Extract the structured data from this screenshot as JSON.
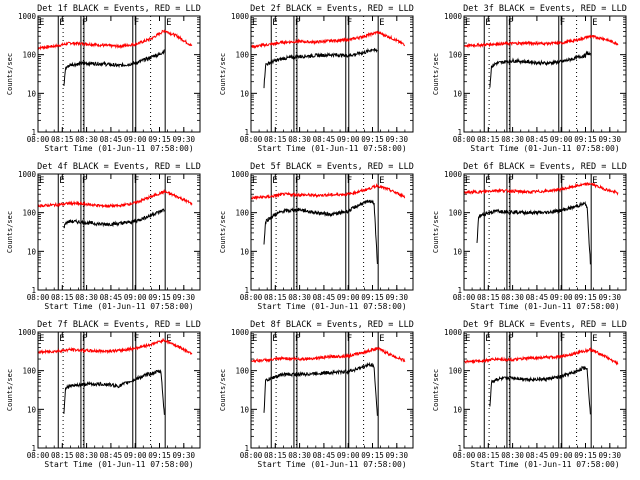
{
  "figure": {
    "common": {
      "ylabel": "Counts/sec",
      "xlabel": "Start Time (01-Jun-11 07:58:00)",
      "yticks": [
        {
          "value": 1,
          "label": "1"
        },
        {
          "value": 10,
          "label": "10"
        },
        {
          "value": 100,
          "label": "100"
        },
        {
          "value": 1000,
          "label": "1000"
        }
      ],
      "xticks": [
        {
          "value": 480,
          "label": "08:00"
        },
        {
          "value": 495,
          "label": "08:15"
        },
        {
          "value": 510,
          "label": "08:30"
        },
        {
          "value": 525,
          "label": "08:45"
        },
        {
          "value": 540,
          "label": "09:00"
        },
        {
          "value": 555,
          "label": "09:15"
        },
        {
          "value": 570,
          "label": "09:30"
        }
      ],
      "markers": [
        {
          "value": 492.5,
          "label": "E"
        },
        {
          "value": 506.5,
          "label": "F"
        },
        {
          "value": 538.5,
          "label": "F"
        },
        {
          "value": 558.5,
          "label": "E"
        }
      ],
      "dotted_lines": [
        495.5,
        508,
        549.5
      ],
      "colors": {
        "events": "#000000",
        "lld": "#ff0000",
        "axis": "#000000"
      }
    },
    "panels": [
      {
        "title": "Det 1f BLACK = Events, RED = LLD"
      },
      {
        "title": "Det 2f BLACK = Events, RED = LLD"
      },
      {
        "title": "Det 3f BLACK = Events, RED = LLD"
      },
      {
        "title": "Det 4f BLACK = Events, RED = LLD"
      },
      {
        "title": "Det 5f BLACK = Events, RED = LLD"
      },
      {
        "title": "Det 6f BLACK = Events, RED = LLD"
      },
      {
        "title": "Det 7f BLACK = Events, RED = LLD"
      },
      {
        "title": "Det 8f BLACK = Events, RED = LLD"
      },
      {
        "title": "Det 9f BLACK = Events, RED = LLD"
      }
    ]
  },
  "chart_data": [
    {
      "type": "line",
      "title": "Det 1f BLACK = Events, RED = LLD",
      "xlabel": "Start Time (01-Jun-11 07:58:00)",
      "ylabel": "Counts/sec",
      "yscale": "log",
      "ylim": [
        1,
        1000
      ],
      "xlim": [
        480,
        580
      ],
      "series": [
        {
          "name": "LLD",
          "color": "#ff0000",
          "x": [
            480,
            492,
            500,
            510,
            520,
            530,
            540,
            550,
            558,
            566,
            575
          ],
          "y": [
            150,
            170,
            200,
            190,
            175,
            165,
            185,
            260,
            420,
            300,
            170
          ]
        },
        {
          "name": "Events",
          "color": "#000000",
          "x": [
            496,
            497,
            500,
            510,
            520,
            530,
            540,
            548,
            552,
            555,
            556,
            558
          ],
          "y": [
            15,
            45,
            55,
            60,
            58,
            52,
            60,
            80,
            95,
            100,
            110,
            125
          ]
        }
      ]
    },
    {
      "type": "line",
      "title": "Det 2f BLACK = Events, RED = LLD",
      "xlabel": "Start Time (01-Jun-11 07:58:00)",
      "ylabel": "Counts/sec",
      "yscale": "log",
      "ylim": [
        1,
        1000
      ],
      "xlim": [
        480,
        580
      ],
      "series": [
        {
          "name": "LLD",
          "color": "#ff0000",
          "x": [
            480,
            492,
            500,
            510,
            520,
            530,
            540,
            550,
            558,
            566,
            575
          ],
          "y": [
            160,
            185,
            210,
            220,
            210,
            230,
            240,
            300,
            380,
            280,
            180
          ]
        },
        {
          "name": "Events",
          "color": "#000000",
          "x": [
            488,
            489,
            495,
            500,
            510,
            520,
            530,
            540,
            548,
            552,
            555,
            556,
            558
          ],
          "y": [
            15,
            55,
            70,
            80,
            90,
            95,
            100,
            95,
            110,
            120,
            140,
            130,
            125
          ]
        }
      ]
    },
    {
      "type": "line",
      "title": "Det 3f BLACK = Events, RED = LLD",
      "xlabel": "Start Time (01-Jun-11 07:58:00)",
      "ylabel": "Counts/sec",
      "yscale": "log",
      "ylim": [
        1,
        1000
      ],
      "xlim": [
        480,
        580
      ],
      "series": [
        {
          "name": "LLD",
          "color": "#ff0000",
          "x": [
            480,
            492,
            500,
            510,
            520,
            530,
            540,
            550,
            558,
            566,
            575
          ],
          "y": [
            170,
            180,
            190,
            195,
            200,
            195,
            200,
            240,
            300,
            260,
            190
          ]
        },
        {
          "name": "Events",
          "color": "#000000",
          "x": [
            496,
            497,
            500,
            510,
            520,
            530,
            540,
            548,
            552,
            555,
            556,
            558
          ],
          "y": [
            15,
            50,
            60,
            70,
            65,
            60,
            65,
            80,
            90,
            95,
            110,
            100
          ]
        }
      ]
    },
    {
      "type": "line",
      "title": "Det 4f BLACK = Events, RED = LLD",
      "xlabel": "Start Time (01-Jun-11 07:58:00)",
      "ylabel": "Counts/sec",
      "yscale": "log",
      "ylim": [
        1,
        1000
      ],
      "xlim": [
        480,
        580
      ],
      "series": [
        {
          "name": "LLD",
          "color": "#ff0000",
          "x": [
            480,
            492,
            500,
            510,
            520,
            530,
            540,
            550,
            558,
            566,
            575
          ],
          "y": [
            150,
            160,
            175,
            165,
            150,
            150,
            180,
            260,
            350,
            260,
            170
          ]
        },
        {
          "name": "Events",
          "color": "#000000",
          "x": [
            496,
            497,
            500,
            510,
            520,
            530,
            540,
            548,
            552,
            555,
            556,
            558
          ],
          "y": [
            40,
            55,
            60,
            55,
            50,
            52,
            60,
            80,
            95,
            105,
            110,
            120
          ]
        }
      ]
    },
    {
      "type": "line",
      "title": "Det 5f BLACK = Events, RED = LLD",
      "xlabel": "Start Time (01-Jun-11 07:58:00)",
      "ylabel": "Counts/sec",
      "yscale": "log",
      "ylim": [
        1,
        1000
      ],
      "xlim": [
        480,
        580
      ],
      "series": [
        {
          "name": "LLD",
          "color": "#ff0000",
          "x": [
            480,
            492,
            500,
            510,
            520,
            530,
            540,
            550,
            558,
            566,
            575
          ],
          "y": [
            240,
            260,
            300,
            290,
            280,
            290,
            300,
            380,
            500,
            380,
            260
          ]
        },
        {
          "name": "Events",
          "color": "#000000",
          "x": [
            488,
            489,
            495,
            500,
            510,
            520,
            530,
            540,
            548,
            552,
            555,
            556,
            558
          ],
          "y": [
            15,
            60,
            90,
            110,
            120,
            100,
            90,
            110,
            170,
            190,
            200,
            170,
            5
          ]
        }
      ]
    },
    {
      "type": "line",
      "title": "Det 6f BLACK = Events, RED = LLD",
      "xlabel": "Start Time (01-Jun-11 07:58:00)",
      "ylabel": "Counts/sec",
      "yscale": "log",
      "ylim": [
        1,
        1000
      ],
      "xlim": [
        480,
        580
      ],
      "series": [
        {
          "name": "LLD",
          "color": "#ff0000",
          "x": [
            480,
            492,
            500,
            510,
            520,
            530,
            540,
            550,
            558,
            566,
            575
          ],
          "y": [
            330,
            350,
            380,
            360,
            340,
            360,
            400,
            500,
            560,
            420,
            320
          ]
        },
        {
          "name": "Events",
          "color": "#000000",
          "x": [
            488,
            489,
            495,
            500,
            510,
            520,
            530,
            540,
            548,
            552,
            555,
            556,
            558
          ],
          "y": [
            15,
            80,
            100,
            110,
            105,
            100,
            100,
            115,
            140,
            160,
            170,
            140,
            5
          ]
        }
      ]
    },
    {
      "type": "line",
      "title": "Det 7f BLACK = Events, RED = LLD",
      "xlabel": "Start Time (01-Jun-11 07:58:00)",
      "ylabel": "Counts/sec",
      "yscale": "log",
      "ylim": [
        1,
        1000
      ],
      "xlim": [
        480,
        580
      ],
      "series": [
        {
          "name": "LLD",
          "color": "#ff0000",
          "x": [
            480,
            492,
            500,
            510,
            520,
            530,
            540,
            550,
            558,
            566,
            575
          ],
          "y": [
            300,
            320,
            350,
            330,
            320,
            330,
            380,
            480,
            620,
            430,
            280
          ]
        },
        {
          "name": "Events",
          "color": "#000000",
          "x": [
            496,
            497,
            500,
            510,
            520,
            530,
            540,
            548,
            552,
            555,
            556,
            558
          ],
          "y": [
            8,
            35,
            40,
            45,
            45,
            40,
            60,
            80,
            90,
            95,
            90,
            7
          ]
        }
      ]
    },
    {
      "type": "line",
      "title": "Det 8f BLACK = Events, RED = LLD",
      "xlabel": "Start Time (01-Jun-11 07:58:00)",
      "ylabel": "Counts/sec",
      "yscale": "log",
      "ylim": [
        1,
        1000
      ],
      "xlim": [
        480,
        580
      ],
      "series": [
        {
          "name": "LLD",
          "color": "#ff0000",
          "x": [
            480,
            492,
            500,
            510,
            520,
            530,
            540,
            550,
            558,
            566,
            575
          ],
          "y": [
            180,
            190,
            210,
            200,
            210,
            230,
            240,
            300,
            380,
            260,
            180
          ]
        },
        {
          "name": "Events",
          "color": "#000000",
          "x": [
            488,
            489,
            495,
            500,
            510,
            520,
            530,
            540,
            548,
            552,
            555,
            556,
            558
          ],
          "y": [
            8,
            55,
            70,
            80,
            80,
            85,
            90,
            95,
            120,
            140,
            140,
            120,
            7
          ]
        }
      ]
    },
    {
      "type": "line",
      "title": "Det 9f BLACK = Events, RED = LLD",
      "xlabel": "Start Time (01-Jun-11 07:58:00)",
      "ylabel": "Counts/sec",
      "yscale": "log",
      "ylim": [
        1,
        1000
      ],
      "xlim": [
        480,
        580
      ],
      "series": [
        {
          "name": "LLD",
          "color": "#ff0000",
          "x": [
            480,
            492,
            500,
            510,
            520,
            530,
            540,
            550,
            558,
            566,
            575
          ],
          "y": [
            170,
            180,
            200,
            190,
            210,
            220,
            230,
            290,
            350,
            250,
            150
          ]
        },
        {
          "name": "Events",
          "color": "#000000",
          "x": [
            496,
            497,
            500,
            510,
            520,
            530,
            540,
            548,
            552,
            555,
            556,
            558
          ],
          "y": [
            12,
            50,
            60,
            65,
            60,
            60,
            70,
            90,
            110,
            120,
            110,
            8
          ]
        }
      ]
    }
  ]
}
